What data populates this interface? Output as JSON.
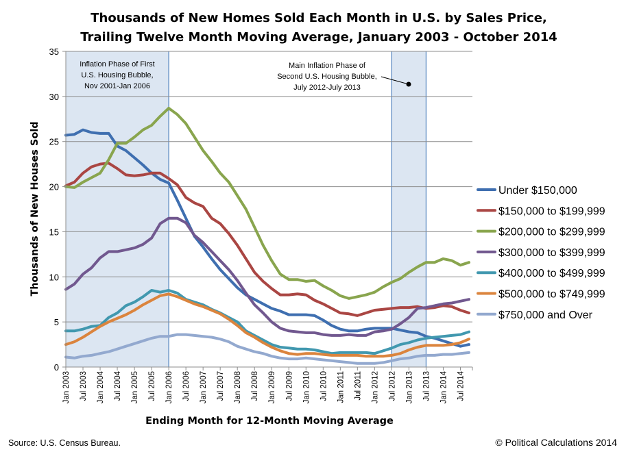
{
  "chart_data": {
    "type": "line",
    "title": [
      "Thousands of New Homes Sold Each Month in U.S. by Sales Price,",
      "Trailing Twelve Month Moving Average, January 2003 - October 2014"
    ],
    "xlabel": "Ending Month for 12-Month Moving Average",
    "ylabel": "Thousands of New Houses Sold",
    "ylim": [
      0,
      35
    ],
    "yticks": [
      0,
      5,
      10,
      15,
      20,
      25,
      30,
      35
    ],
    "xrange": [
      "Jan 2003",
      "Oct 2014"
    ],
    "x_sampling": "quarterly, Jan 2003 through Oct 2014",
    "xticks": [
      "Jan 2003",
      "Jul 2003",
      "Jan 2004",
      "Jul 2004",
      "Jan 2005",
      "Jul 2005",
      "Jan 2006",
      "Jul 2006",
      "Jan 2007",
      "Jul 2007",
      "Jan 2008",
      "Jul 2008",
      "Jan 2009",
      "Jul 2009",
      "Jan 2010",
      "Jul 2010",
      "Jan 2011",
      "Jul 2011",
      "Jan 2012",
      "Jul 2012",
      "Jan 2013",
      "Jul 2013",
      "Jan 2014",
      "Jul 2014"
    ],
    "grid": "horizontal",
    "legend": "right",
    "series": [
      {
        "name": "Under $150,000",
        "color": "#3f6fb0",
        "values": [
          25.7,
          25.8,
          26.3,
          26.0,
          25.9,
          25.9,
          24.5,
          24.0,
          23.2,
          22.4,
          21.5,
          20.8,
          20.4,
          18.5,
          16.5,
          14.5,
          13.3,
          12.0,
          10.8,
          9.8,
          8.8,
          8.0,
          7.5,
          7.0,
          6.5,
          6.2,
          5.8,
          5.8,
          5.8,
          5.7,
          5.2,
          4.6,
          4.2,
          4.0,
          4.0,
          4.2,
          4.3,
          4.3,
          4.3,
          4.1,
          3.9,
          3.8,
          3.4,
          3.2,
          2.9,
          2.6,
          2.3,
          2.5
        ]
      },
      {
        "name": "$150,000 to $199,999",
        "color": "#aa4643",
        "values": [
          20.1,
          20.5,
          21.5,
          22.2,
          22.5,
          22.6,
          22.0,
          21.3,
          21.2,
          21.3,
          21.5,
          21.5,
          20.9,
          20.2,
          18.8,
          18.2,
          17.8,
          16.5,
          15.9,
          14.8,
          13.5,
          12.0,
          10.5,
          9.5,
          8.7,
          8.0,
          8.0,
          8.1,
          8.0,
          7.4,
          7.0,
          6.5,
          6.0,
          5.9,
          5.7,
          6.0,
          6.3,
          6.4,
          6.5,
          6.6,
          6.6,
          6.7,
          6.5,
          6.6,
          6.8,
          6.7,
          6.3,
          6.0
        ]
      },
      {
        "name": "$200,000 to $299,999",
        "color": "#89a54e",
        "values": [
          20.0,
          19.9,
          20.5,
          21.0,
          21.5,
          23.0,
          24.8,
          24.8,
          25.5,
          26.3,
          26.8,
          27.8,
          28.7,
          28.0,
          27.0,
          25.5,
          24.0,
          22.8,
          21.5,
          20.5,
          19.0,
          17.5,
          15.5,
          13.5,
          11.8,
          10.3,
          9.7,
          9.7,
          9.5,
          9.6,
          9.0,
          8.5,
          7.9,
          7.6,
          7.8,
          8.0,
          8.3,
          8.9,
          9.4,
          9.8,
          10.5,
          11.1,
          11.6,
          11.6,
          12.0,
          11.8,
          11.3,
          11.6
        ]
      },
      {
        "name": "$300,000 to $399,999",
        "color": "#71588f",
        "values": [
          8.6,
          9.2,
          10.3,
          11.0,
          12.1,
          12.8,
          12.8,
          13.0,
          13.2,
          13.6,
          14.3,
          15.9,
          16.5,
          16.5,
          16.0,
          14.6,
          13.8,
          12.8,
          11.8,
          10.8,
          9.6,
          8.2,
          6.9,
          6.0,
          5.0,
          4.3,
          4.0,
          3.9,
          3.8,
          3.8,
          3.6,
          3.5,
          3.5,
          3.6,
          3.5,
          3.5,
          3.9,
          4.0,
          4.2,
          4.8,
          5.5,
          6.5,
          6.6,
          6.8,
          7.0,
          7.1,
          7.3,
          7.5
        ]
      },
      {
        "name": "$400,000 to $499,999",
        "color": "#4198af",
        "values": [
          4.0,
          4.0,
          4.2,
          4.5,
          4.6,
          5.5,
          6.0,
          6.8,
          7.2,
          7.8,
          8.5,
          8.3,
          8.5,
          8.2,
          7.5,
          7.2,
          6.9,
          6.4,
          6.0,
          5.5,
          5.0,
          4.0,
          3.5,
          3.0,
          2.5,
          2.2,
          2.1,
          2.0,
          2.0,
          1.9,
          1.7,
          1.5,
          1.6,
          1.6,
          1.6,
          1.6,
          1.5,
          1.8,
          2.1,
          2.5,
          2.7,
          3.0,
          3.2,
          3.3,
          3.4,
          3.5,
          3.6,
          3.9
        ]
      },
      {
        "name": "$500,000 to $749,999",
        "color": "#db843d",
        "values": [
          2.5,
          2.8,
          3.3,
          3.9,
          4.5,
          5.0,
          5.4,
          5.8,
          6.3,
          6.9,
          7.4,
          7.9,
          8.1,
          7.8,
          7.4,
          7.0,
          6.7,
          6.3,
          5.9,
          5.3,
          4.6,
          3.8,
          3.3,
          2.7,
          2.2,
          1.8,
          1.5,
          1.4,
          1.5,
          1.5,
          1.4,
          1.3,
          1.3,
          1.3,
          1.3,
          1.2,
          1.2,
          1.2,
          1.3,
          1.5,
          1.9,
          2.2,
          2.4,
          2.4,
          2.4,
          2.5,
          2.7,
          3.1
        ]
      },
      {
        "name": "$750,000 and Over",
        "color": "#93a9cf",
        "values": [
          1.1,
          1.0,
          1.2,
          1.3,
          1.5,
          1.7,
          2.0,
          2.3,
          2.6,
          2.9,
          3.2,
          3.4,
          3.4,
          3.6,
          3.6,
          3.5,
          3.4,
          3.3,
          3.1,
          2.8,
          2.3,
          2.0,
          1.7,
          1.5,
          1.2,
          1.0,
          0.9,
          0.9,
          1.0,
          0.9,
          0.8,
          0.7,
          0.6,
          0.5,
          0.4,
          0.4,
          0.4,
          0.5,
          0.7,
          0.9,
          1.0,
          1.2,
          1.3,
          1.3,
          1.4,
          1.4,
          1.5,
          1.6
        ]
      }
    ],
    "shaded_periods": [
      {
        "start": "Nov 2001",
        "end": "Jan 2006",
        "label": [
          "Inflation Phase of First",
          "U.S. Housing Bubble,",
          "Nov 2001-Jan 2006"
        ]
      },
      {
        "start": "Jul 2012",
        "end": "Jul 2013",
        "label": [
          "Main Inflation Phase of",
          "Second U.S. Housing Bubble,",
          "July 2012-July 2013"
        ]
      }
    ],
    "shade_color": "#dce6f2",
    "shade_border": "#4f81bd"
  },
  "footer": {
    "source": "Source: U.S. Census Bureau.",
    "copyright": "© Political Calculations 2014"
  }
}
